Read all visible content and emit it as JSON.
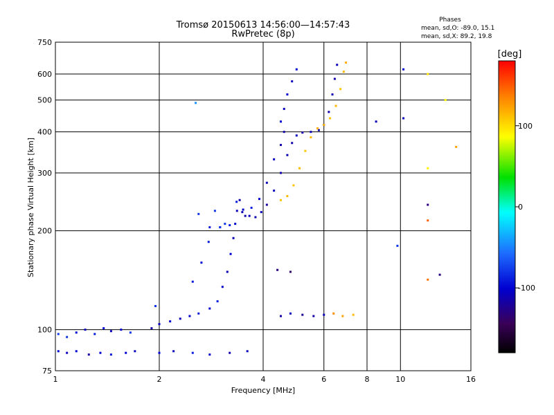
{
  "chart_data": {
    "type": "scatter",
    "title": "Tromsø 20150613 14:56:00—14:57:43",
    "subtitle": "RwPretec (8p)",
    "xlabel": "Frequency [MHz]",
    "ylabel": "Stationary phase Virtual Height [km]",
    "x_scale": "log",
    "y_scale": "log",
    "xlim": [
      1,
      16
    ],
    "ylim": [
      75,
      750
    ],
    "x_ticks": [
      1,
      2,
      4,
      6,
      8,
      10,
      16
    ],
    "y_ticks": [
      75,
      100,
      200,
      300,
      400,
      500,
      600,
      750
    ],
    "grid": true,
    "phases_box": {
      "title": "Phases",
      "line_o": "mean, sd,O: -89.0, 15.1",
      "line_x": "mean, sd,X:  89.2, 19.8"
    },
    "colorbar": {
      "unit": "[deg]",
      "ticks": [
        100,
        0,
        -100
      ],
      "range": [
        -180,
        180
      ]
    },
    "series": [
      {
        "points": [
          [
            1.02,
            86,
            -120
          ],
          [
            1.08,
            85,
            -125
          ],
          [
            1.15,
            86,
            -120
          ],
          [
            1.25,
            84,
            -130
          ],
          [
            1.35,
            85,
            -120
          ],
          [
            1.45,
            84,
            -115
          ],
          [
            1.6,
            85,
            -120
          ],
          [
            1.7,
            86,
            -125
          ],
          [
            2.0,
            85,
            -120
          ],
          [
            2.2,
            86,
            -125
          ],
          [
            2.5,
            85,
            -115
          ],
          [
            2.8,
            84,
            -120
          ],
          [
            3.2,
            85,
            -130
          ],
          [
            3.6,
            86,
            -125
          ]
        ]
      },
      {
        "points": [
          [
            1.02,
            97,
            -110
          ],
          [
            1.08,
            95,
            -110
          ],
          [
            1.15,
            98,
            -120
          ],
          [
            1.22,
            100,
            -125
          ],
          [
            1.3,
            97,
            -115
          ],
          [
            1.38,
            101,
            -120
          ],
          [
            1.45,
            99,
            -125
          ],
          [
            1.55,
            100,
            -120
          ],
          [
            1.65,
            98,
            -110
          ]
        ]
      },
      {
        "points": [
          [
            1.9,
            101,
            -130
          ],
          [
            2.0,
            104,
            -125
          ],
          [
            2.15,
            106,
            -120
          ],
          [
            2.3,
            108,
            -125
          ],
          [
            2.45,
            110,
            -120
          ],
          [
            2.6,
            112,
            -115
          ],
          [
            2.8,
            116,
            -120
          ],
          [
            2.95,
            122,
            -115
          ],
          [
            3.05,
            135,
            -120
          ],
          [
            3.15,
            150,
            -125
          ],
          [
            3.22,
            170,
            -120
          ],
          [
            3.28,
            190,
            -125
          ],
          [
            3.32,
            210,
            -120
          ],
          [
            3.36,
            230,
            -125
          ],
          [
            3.42,
            248,
            -130
          ],
          [
            3.48,
            228,
            -125
          ],
          [
            3.55,
            222,
            -130
          ],
          [
            3.65,
            222,
            -125
          ],
          [
            3.8,
            220,
            -130
          ],
          [
            3.95,
            228,
            -125
          ],
          [
            4.1,
            240,
            -130
          ],
          [
            4.3,
            265,
            -125
          ],
          [
            4.5,
            300,
            -130
          ],
          [
            4.7,
            340,
            -125
          ],
          [
            4.85,
            370,
            -130
          ],
          [
            5.0,
            390,
            -125
          ],
          [
            5.2,
            398,
            -130
          ],
          [
            5.5,
            400,
            -125
          ],
          [
            5.8,
            405,
            -130
          ],
          [
            6.0,
            420,
            -125
          ],
          [
            6.2,
            460,
            -130
          ],
          [
            6.35,
            520,
            -125
          ],
          [
            6.45,
            580,
            -130
          ],
          [
            6.55,
            640,
            -125
          ]
        ]
      },
      {
        "points": [
          [
            1.95,
            118,
            -110
          ],
          [
            2.5,
            140,
            -115
          ],
          [
            2.65,
            160,
            -120
          ],
          [
            2.78,
            185,
            -115
          ],
          [
            2.9,
            230,
            -110
          ],
          [
            3.0,
            205,
            -115
          ],
          [
            3.1,
            210,
            -110
          ],
          [
            3.35,
            245,
            -115
          ],
          [
            3.5,
            232,
            -120
          ],
          [
            3.7,
            235,
            -115
          ],
          [
            3.9,
            250,
            -120
          ],
          [
            4.1,
            280,
            -125
          ],
          [
            4.3,
            330,
            -125
          ],
          [
            4.5,
            365,
            -130
          ],
          [
            4.6,
            400,
            -130
          ]
        ]
      },
      {
        "points": [
          [
            2.6,
            225,
            -110
          ],
          [
            2.8,
            205,
            -115
          ],
          [
            3.0,
            205,
            -110
          ],
          [
            3.2,
            208,
            -115
          ]
        ]
      },
      {
        "points": [
          [
            4.5,
            430,
            -120
          ],
          [
            4.6,
            470,
            -125
          ],
          [
            4.7,
            520,
            -120
          ],
          [
            4.85,
            570,
            -125
          ],
          [
            5.0,
            620,
            -120
          ]
        ]
      },
      {
        "points": [
          [
            4.5,
            248,
            95
          ],
          [
            4.7,
            255,
            100
          ],
          [
            4.9,
            275,
            95
          ],
          [
            5.1,
            310,
            100
          ],
          [
            5.3,
            350,
            95
          ],
          [
            5.5,
            385,
            100
          ],
          [
            5.75,
            410,
            105
          ],
          [
            6.0,
            420,
            100
          ],
          [
            6.25,
            440,
            95
          ],
          [
            6.5,
            480,
            100
          ],
          [
            6.7,
            540,
            95
          ],
          [
            6.85,
            610,
            100
          ],
          [
            6.95,
            650,
            105
          ]
        ]
      },
      {
        "points": [
          [
            4.5,
            110,
            -130
          ],
          [
            4.8,
            112,
            -125
          ],
          [
            5.2,
            111,
            -135
          ],
          [
            5.6,
            110,
            -130
          ],
          [
            6.0,
            111,
            -125
          ],
          [
            4.4,
            152,
            -140
          ],
          [
            4.8,
            150,
            -145
          ]
        ]
      },
      {
        "points": [
          [
            6.4,
            112,
            120
          ],
          [
            6.8,
            110,
            110
          ],
          [
            7.3,
            111,
            100
          ]
        ]
      },
      {
        "points": [
          [
            2.55,
            490,
            -90
          ],
          [
            12.0,
            600,
            80
          ],
          [
            13.5,
            500,
            70
          ],
          [
            14.5,
            360,
            110
          ],
          [
            12.0,
            310,
            75
          ],
          [
            12.0,
            240,
            -140
          ],
          [
            12.0,
            215,
            140
          ],
          [
            12.0,
            142,
            130
          ],
          [
            13.0,
            147,
            -140
          ],
          [
            9.8,
            180,
            -110
          ],
          [
            10.2,
            620,
            -120
          ],
          [
            10.2,
            440,
            -125
          ],
          [
            8.5,
            430,
            -125
          ]
        ]
      }
    ]
  }
}
